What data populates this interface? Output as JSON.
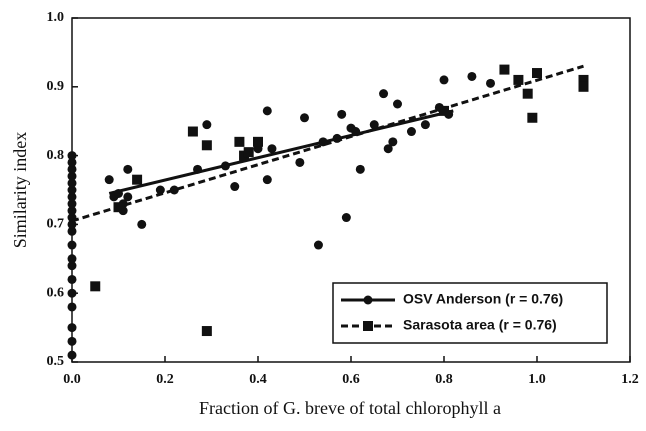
{
  "chart_data": {
    "type": "scatter",
    "xlabel": "Fraction of G. breve of total chlorophyll a",
    "ylabel": "Similarity index",
    "xlim": [
      0,
      1.2
    ],
    "ylim": [
      0.5,
      1.0
    ],
    "xticks": [
      {
        "value": 0,
        "label": "0.0"
      },
      0.2,
      0.4,
      0.6,
      0.8,
      {
        "value": 1,
        "label": "1.0"
      },
      1.2
    ],
    "yticks": [
      0.5,
      0.6,
      0.7,
      0.8,
      0.9,
      {
        "value": 1,
        "label": "1.0"
      }
    ],
    "legend": "lower right",
    "series": [
      {
        "name": "OSV Anderson (r = 0.76)",
        "color": "#111111",
        "marker": "circle",
        "line_style": "solid",
        "x": [
          0,
          0,
          0,
          0,
          0,
          0,
          0,
          0,
          0,
          0,
          0,
          0,
          0,
          0,
          0,
          0,
          0,
          0,
          0,
          0,
          0,
          0.08,
          0.09,
          0.1,
          0.11,
          0.11,
          0.12,
          0.12,
          0.15,
          0.19,
          0.22,
          0.27,
          0.29,
          0.33,
          0.35,
          0.37,
          0.4,
          0.42,
          0.42,
          0.43,
          0.49,
          0.5,
          0.53,
          0.54,
          0.57,
          0.58,
          0.59,
          0.6,
          0.61,
          0.62,
          0.65,
          0.67,
          0.68,
          0.69,
          0.7,
          0.73,
          0.76,
          0.79,
          0.8,
          0.81,
          0.86,
          0.9
        ],
        "values": [
          0.51,
          0.53,
          0.55,
          0.58,
          0.6,
          0.62,
          0.64,
          0.65,
          0.67,
          0.69,
          0.7,
          0.71,
          0.72,
          0.73,
          0.74,
          0.75,
          0.76,
          0.77,
          0.78,
          0.79,
          0.8,
          0.765,
          0.74,
          0.745,
          0.73,
          0.72,
          0.78,
          0.74,
          0.7,
          0.75,
          0.75,
          0.78,
          0.845,
          0.785,
          0.755,
          0.8,
          0.81,
          0.865,
          0.765,
          0.81,
          0.79,
          0.855,
          0.67,
          0.82,
          0.825,
          0.86,
          0.71,
          0.84,
          0.835,
          0.78,
          0.845,
          0.89,
          0.81,
          0.82,
          0.875,
          0.835,
          0.845,
          0.87,
          0.91,
          0.86,
          0.915,
          0.905
        ],
        "fit": {
          "x": [
            0.08,
            0.82
          ],
          "values": [
            0.745,
            0.865
          ]
        }
      },
      {
        "name": "Sarasota  area (r = 0.76)",
        "color": "#111111",
        "marker": "square",
        "line_style": "dashed",
        "x": [
          0.05,
          0.1,
          0.14,
          0.26,
          0.29,
          0.29,
          0.36,
          0.37,
          0.38,
          0.4,
          0.8,
          0.93,
          0.96,
          0.98,
          0.99,
          1.0,
          1.1,
          1.1
        ],
        "values": [
          0.61,
          0.725,
          0.765,
          0.835,
          0.815,
          0.545,
          0.82,
          0.8,
          0.805,
          0.82,
          0.865,
          0.925,
          0.91,
          0.89,
          0.855,
          0.92,
          0.91,
          0.9
        ],
        "fit": {
          "x": [
            0,
            1.1
          ],
          "values": [
            0.705,
            0.93
          ]
        }
      }
    ]
  }
}
